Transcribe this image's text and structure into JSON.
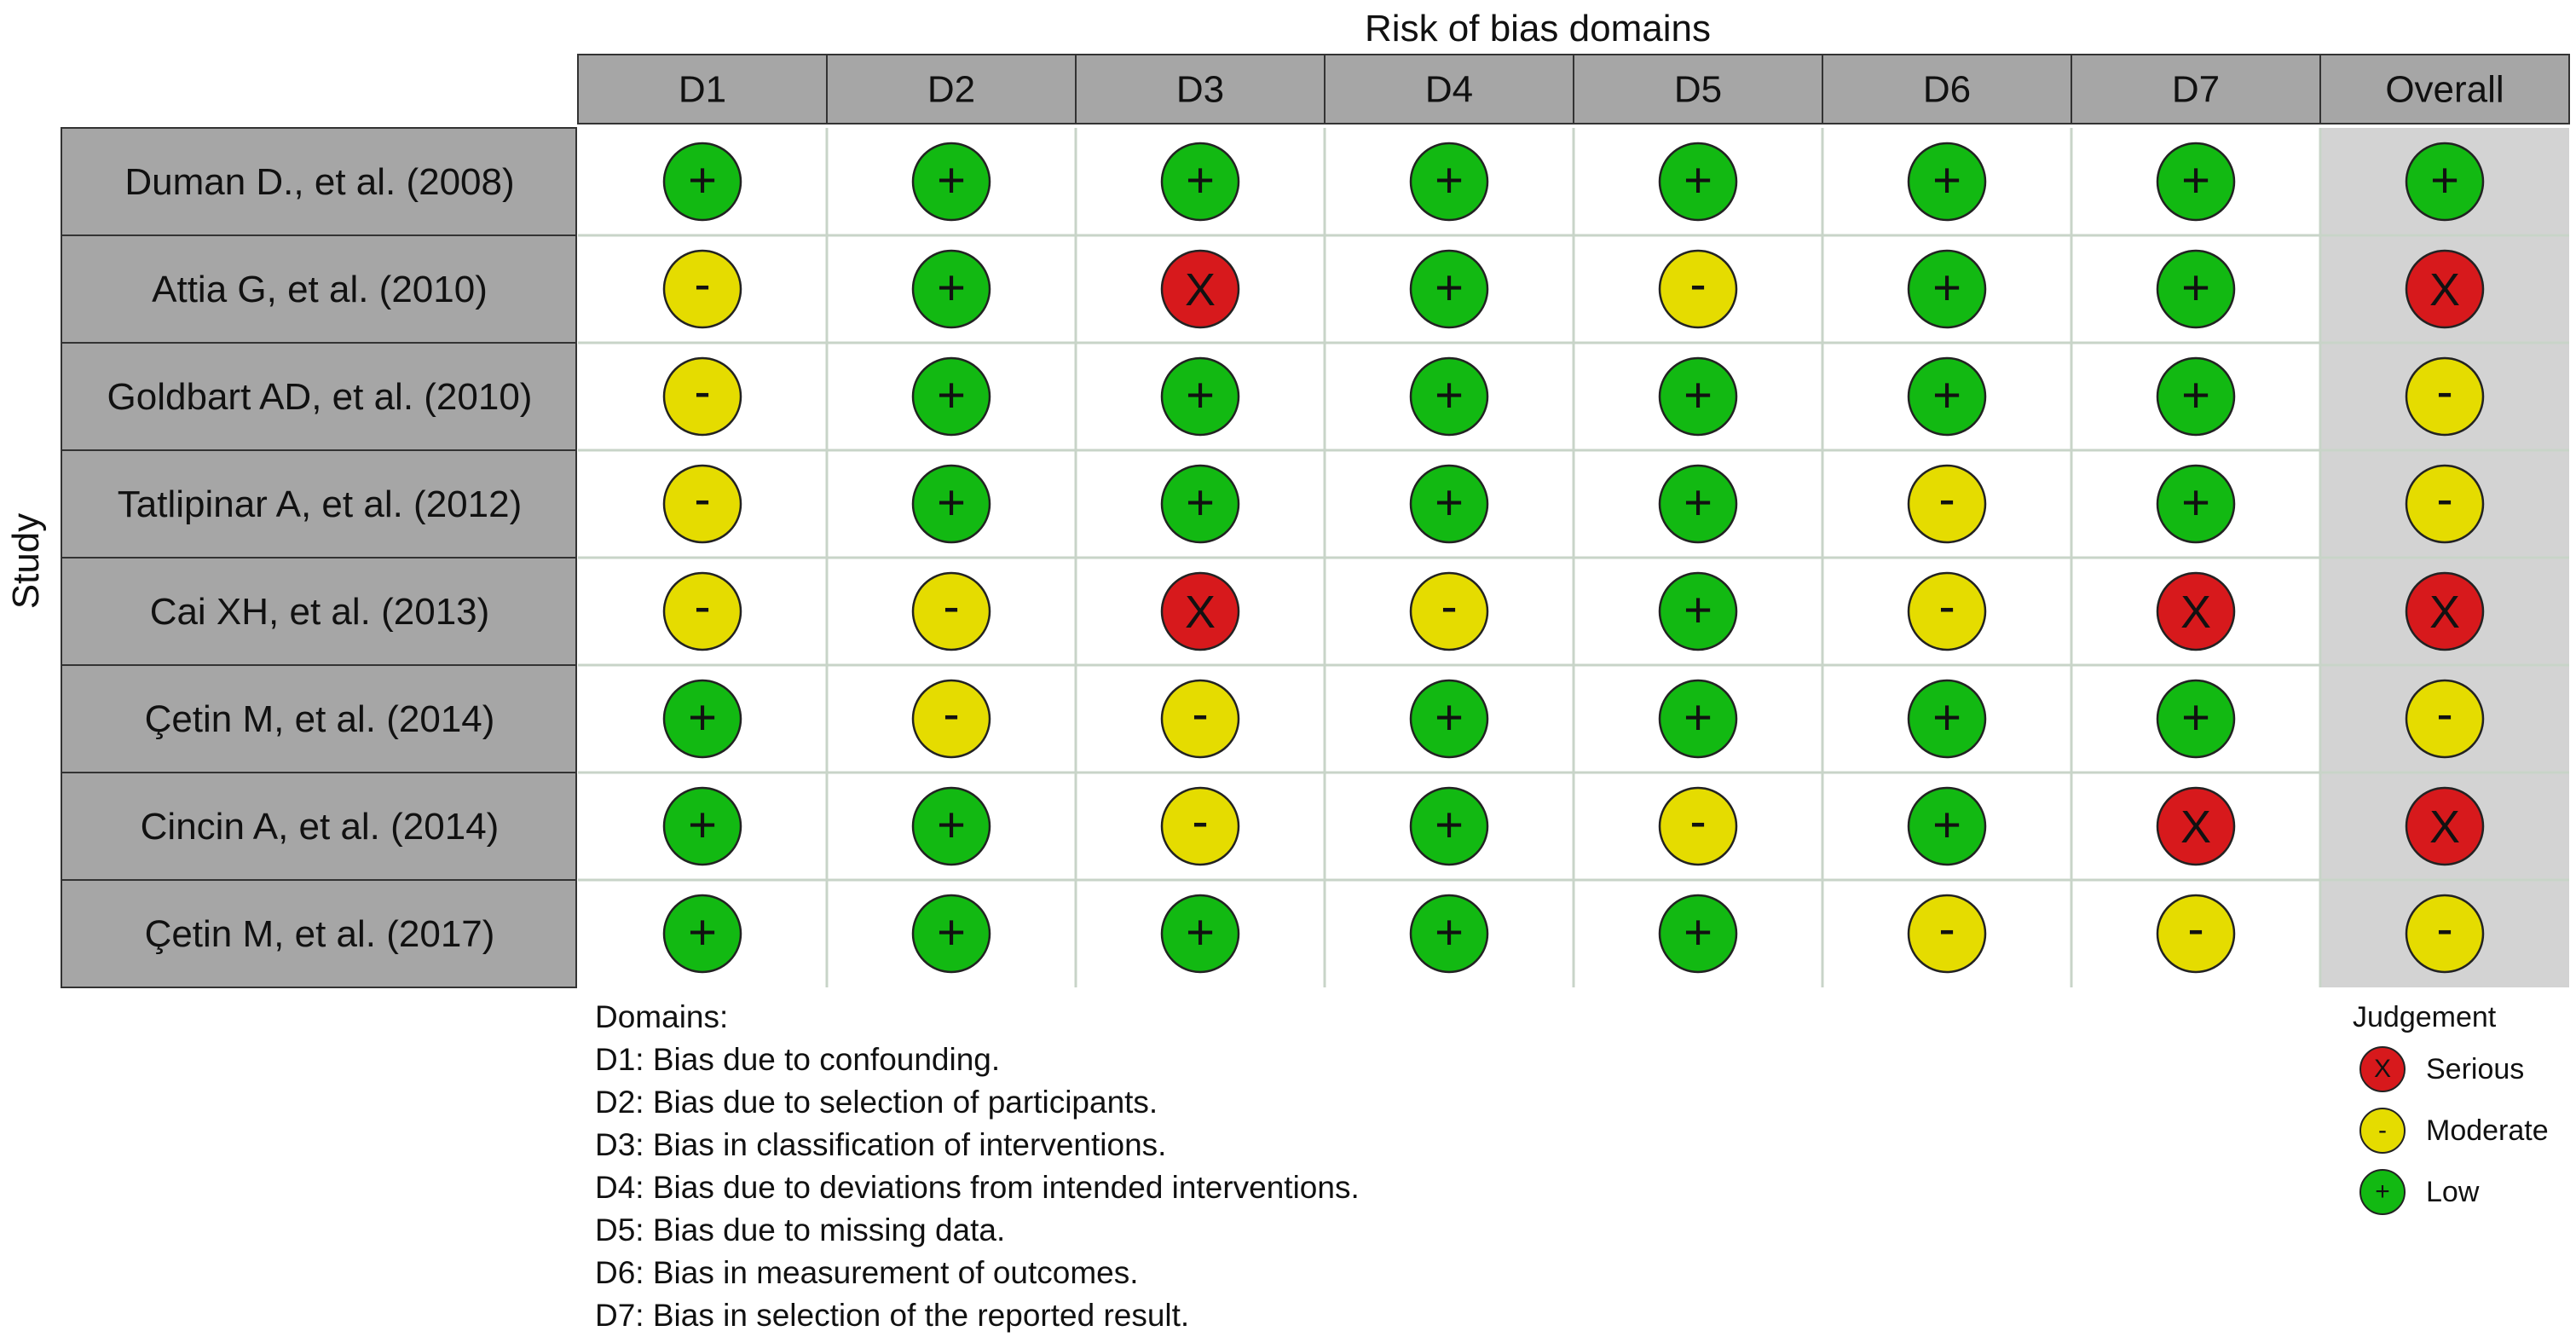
{
  "chart_data": {
    "type": "table",
    "title": "Risk of bias domains",
    "row_axis_label": "Study",
    "domains": [
      "D1",
      "D2",
      "D3",
      "D4",
      "D5",
      "D6",
      "D7",
      "Overall"
    ],
    "studies": [
      "Duman D., et al. (2008)",
      "Attia G, et al. (2010)",
      "Goldbart AD, et al. (2010)",
      "Tatlipinar A, et al. (2012)",
      "Cai XH, et al. (2013)",
      "Çetin M, et al. (2014)",
      "Cincin A, et al. (2014)",
      "Çetin M, et al. (2017)"
    ],
    "judgements": [
      [
        "Low",
        "Low",
        "Low",
        "Low",
        "Low",
        "Low",
        "Low",
        "Low"
      ],
      [
        "Moderate",
        "Low",
        "Serious",
        "Low",
        "Moderate",
        "Low",
        "Low",
        "Serious"
      ],
      [
        "Moderate",
        "Low",
        "Low",
        "Low",
        "Low",
        "Low",
        "Low",
        "Moderate"
      ],
      [
        "Moderate",
        "Low",
        "Low",
        "Low",
        "Low",
        "Moderate",
        "Low",
        "Moderate"
      ],
      [
        "Moderate",
        "Moderate",
        "Serious",
        "Moderate",
        "Low",
        "Moderate",
        "Serious",
        "Serious"
      ],
      [
        "Low",
        "Moderate",
        "Moderate",
        "Low",
        "Low",
        "Low",
        "Low",
        "Moderate"
      ],
      [
        "Low",
        "Low",
        "Moderate",
        "Low",
        "Moderate",
        "Low",
        "Serious",
        "Serious"
      ],
      [
        "Low",
        "Low",
        "Low",
        "Low",
        "Low",
        "Moderate",
        "Moderate",
        "Moderate"
      ]
    ],
    "judgement_levels": {
      "Serious": {
        "symbol": "X",
        "color": "#d7191c"
      },
      "Moderate": {
        "symbol": "-",
        "color": "#e5dc00"
      },
      "Low": {
        "symbol": "+",
        "color": "#12b912"
      }
    }
  },
  "legend": {
    "domains_heading": "Domains:",
    "domains": [
      "D1: Bias due to confounding.",
      "D2: Bias due to selection of participants.",
      "D3: Bias in classification of interventions.",
      "D4: Bias due to deviations from intended interventions.",
      "D5: Bias due to missing data.",
      "D6: Bias in measurement of outcomes.",
      "D7: Bias in selection of the reported result."
    ],
    "judgement_title": "Judgement",
    "judgements": [
      {
        "label": "Serious",
        "symbol": "X",
        "color": "#d7191c"
      },
      {
        "label": "Moderate",
        "symbol": "-",
        "color": "#e5dc00"
      },
      {
        "label": "Low",
        "symbol": "+",
        "color": "#12b912"
      }
    ]
  },
  "colors": {
    "header_fill": "#a6a6a6",
    "study_fill": "#a6a6a6",
    "overall_fill": "#d3d3d3",
    "cell_fill": "#ffffff",
    "grid_line": "#c8d4c8",
    "border": "#333333"
  }
}
